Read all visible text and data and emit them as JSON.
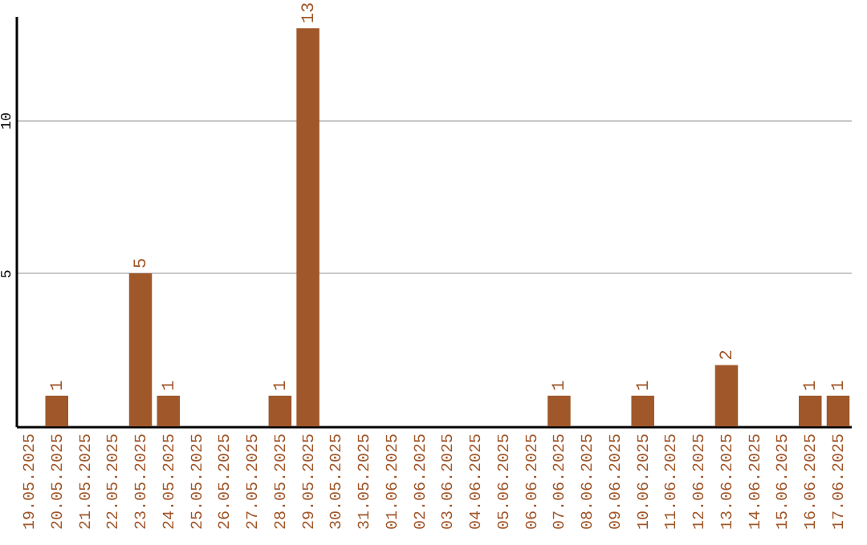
{
  "chart_data": {
    "type": "bar",
    "categories": [
      "19.05.2025",
      "20.05.2025",
      "21.05.2025",
      "22.05.2025",
      "23.05.2025",
      "24.05.2025",
      "25.05.2025",
      "26.05.2025",
      "27.05.2025",
      "28.05.2025",
      "29.05.2025",
      "30.05.2025",
      "31.05.2025",
      "01.06.2025",
      "02.06.2025",
      "03.06.2025",
      "04.06.2025",
      "05.06.2025",
      "06.06.2025",
      "07.06.2025",
      "08.06.2025",
      "09.06.2025",
      "10.06.2025",
      "11.06.2025",
      "12.06.2025",
      "13.06.2025",
      "14.06.2025",
      "15.06.2025",
      "16.06.2025",
      "17.06.2025"
    ],
    "values": [
      0,
      1,
      0,
      0,
      5,
      1,
      0,
      0,
      0,
      1,
      13,
      0,
      0,
      0,
      0,
      0,
      0,
      0,
      0,
      1,
      0,
      0,
      1,
      0,
      0,
      2,
      0,
      0,
      1,
      1
    ],
    "value_labels": [
      null,
      "1",
      null,
      null,
      "5",
      "1",
      null,
      null,
      null,
      "1",
      "13",
      null,
      null,
      null,
      null,
      null,
      null,
      null,
      null,
      "1",
      null,
      null,
      "1",
      null,
      null,
      "2",
      null,
      null,
      "1",
      "1"
    ],
    "color": "#a0572a",
    "ylim": [
      0,
      13.4
    ],
    "yticks": [
      5,
      10
    ],
    "grid": "y"
  }
}
